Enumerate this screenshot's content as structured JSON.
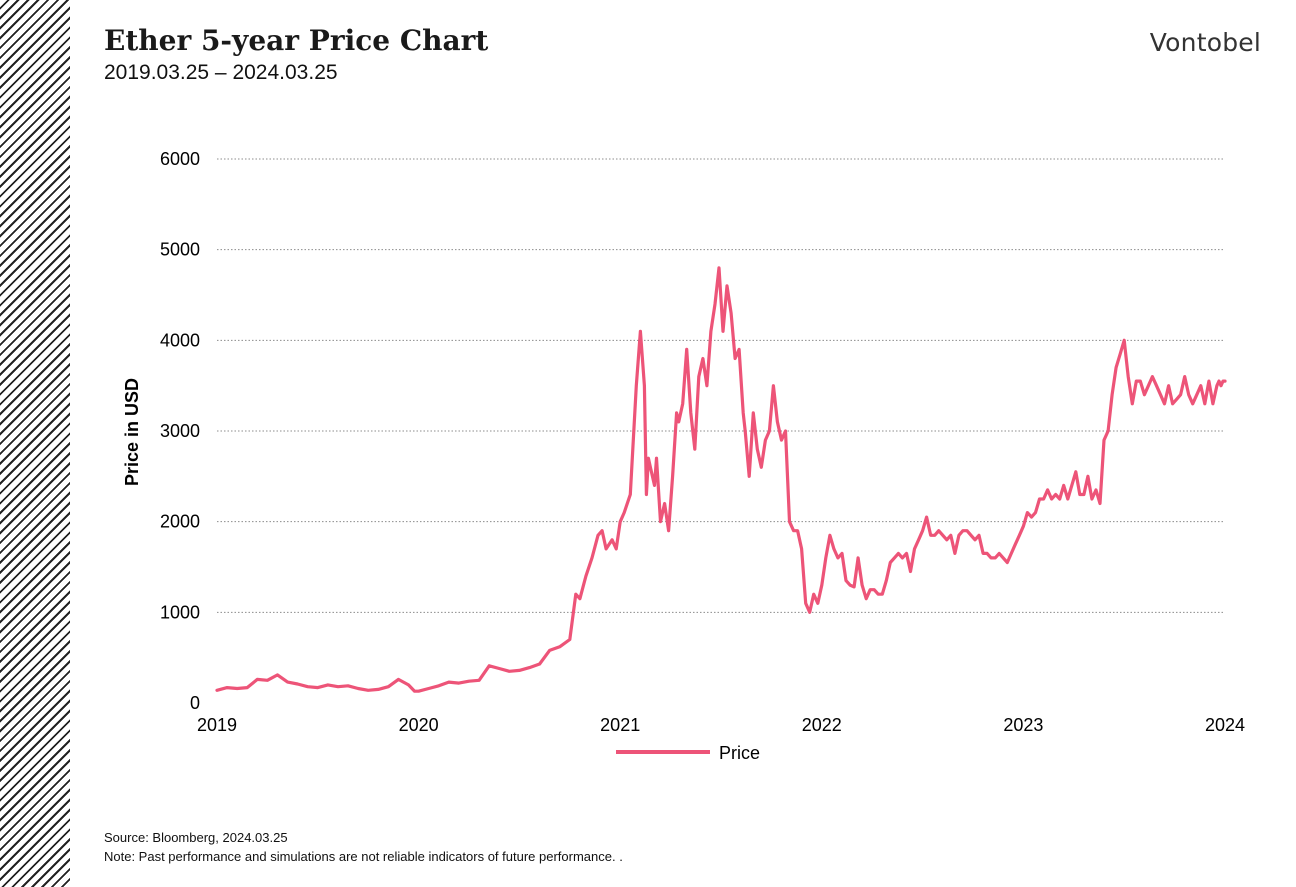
{
  "header": {
    "title": "Ether 5-year Price Chart",
    "subtitle": "2019.03.25 – 2024.03.25",
    "brand": "Vontobel"
  },
  "footer": {
    "source": "Source: Bloomberg, 2024.03.25",
    "note": "Note: Past performance and simulations are not reliable indicators of future performance. ."
  },
  "colors": {
    "line": "#ED5478",
    "grid": "#8C8C8C",
    "text": "#000000"
  },
  "chart_data": {
    "type": "line",
    "title": "Ether 5-year Price Chart",
    "xlabel": "",
    "ylabel": "Price in USD",
    "xlim": [
      2019.0,
      2024.0
    ],
    "ylim": [
      0,
      6000
    ],
    "yticks": [
      0,
      1000,
      2000,
      3000,
      4000,
      5000,
      6000
    ],
    "xticks": [
      2019,
      2020,
      2021,
      2022,
      2023,
      2024
    ],
    "legend": {
      "entries": [
        "Price"
      ],
      "position": "bottom-center"
    },
    "series": [
      {
        "name": "Price",
        "x": [
          2019.0,
          2019.05,
          2019.1,
          2019.15,
          2019.2,
          2019.25,
          2019.3,
          2019.35,
          2019.4,
          2019.45,
          2019.5,
          2019.55,
          2019.6,
          2019.65,
          2019.7,
          2019.75,
          2019.8,
          2019.85,
          2019.9,
          2019.95,
          2019.98,
          2020.0,
          2020.05,
          2020.1,
          2020.15,
          2020.2,
          2020.25,
          2020.3,
          2020.35,
          2020.4,
          2020.45,
          2020.5,
          2020.55,
          2020.6,
          2020.65,
          2020.7,
          2020.75,
          2020.78,
          2020.8,
          2020.83,
          2020.86,
          2020.89,
          2020.91,
          2020.93,
          2020.96,
          2020.98,
          2021.0,
          2021.02,
          2021.05,
          2021.08,
          2021.1,
          2021.12,
          2021.13,
          2021.14,
          2021.15,
          2021.17,
          2021.18,
          2021.2,
          2021.22,
          2021.24,
          2021.26,
          2021.28,
          2021.29,
          2021.31,
          2021.33,
          2021.35,
          2021.37,
          2021.39,
          2021.41,
          2021.43,
          2021.45,
          2021.47,
          2021.49,
          2021.51,
          2021.53,
          2021.55,
          2021.57,
          2021.59,
          2021.61,
          2021.62,
          2021.64,
          2021.66,
          2021.68,
          2021.7,
          2021.72,
          2021.74,
          2021.76,
          2021.78,
          2021.8,
          2021.82,
          2021.84,
          2021.86,
          2021.88,
          2021.9,
          2021.92,
          2021.94,
          2021.96,
          2021.98,
          2022.0,
          2022.02,
          2022.04,
          2022.06,
          2022.08,
          2022.1,
          2022.12,
          2022.14,
          2022.16,
          2022.18,
          2022.2,
          2022.22,
          2022.24,
          2022.26,
          2022.28,
          2022.3,
          2022.32,
          2022.34,
          2022.36,
          2022.38,
          2022.4,
          2022.42,
          2022.44,
          2022.46,
          2022.48,
          2022.5,
          2022.52,
          2022.54,
          2022.56,
          2022.58,
          2022.6,
          2022.62,
          2022.64,
          2022.66,
          2022.68,
          2022.7,
          2022.72,
          2022.74,
          2022.76,
          2022.78,
          2022.8,
          2022.82,
          2022.84,
          2022.86,
          2022.88,
          2022.9,
          2022.92,
          2022.94,
          2022.96,
          2022.98,
          2023.0,
          2023.02,
          2023.04,
          2023.06,
          2023.08,
          2023.1,
          2023.12,
          2023.14,
          2023.16,
          2023.18,
          2023.2,
          2023.22,
          2023.24,
          2023.26,
          2023.28,
          2023.3,
          2023.32,
          2023.34,
          2023.36,
          2023.38,
          2023.4,
          2023.42,
          2023.44,
          2023.46,
          2023.48,
          2023.5,
          2023.52,
          2023.54,
          2023.56,
          2023.58,
          2023.6,
          2023.62,
          2023.64,
          2023.66,
          2023.68,
          2023.7,
          2023.72,
          2023.74,
          2023.76,
          2023.78,
          2023.8,
          2023.82,
          2023.84,
          2023.86,
          2023.88,
          2023.9,
          2023.92,
          2023.94,
          2023.95,
          2023.96,
          2023.97,
          2023.98,
          2023.99,
          2024.0
        ],
        "values": [
          140,
          170,
          160,
          170,
          260,
          250,
          310,
          230,
          210,
          180,
          170,
          200,
          180,
          190,
          160,
          140,
          150,
          180,
          260,
          200,
          130,
          130,
          160,
          190,
          230,
          220,
          240,
          250,
          410,
          380,
          350,
          360,
          390,
          430,
          580,
          620,
          700,
          1200,
          1150,
          1400,
          1600,
          1850,
          1900,
          1700,
          1800,
          1700,
          2000,
          2100,
          2300,
          3500,
          4100,
          3500,
          2300,
          2700,
          2600,
          2400,
          2700,
          2000,
          2200,
          1900,
          2500,
          3200,
          3100,
          3300,
          3900,
          3200,
          2800,
          3600,
          3800,
          3500,
          4100,
          4400,
          4800,
          4100,
          4600,
          4300,
          3800,
          3900,
          3200,
          3000,
          2500,
          3200,
          2800,
          2600,
          2900,
          3000,
          3500,
          3100,
          2900,
          3000,
          2000,
          1900,
          1900,
          1700,
          1100,
          1000,
          1200,
          1100,
          1300,
          1600,
          1850,
          1700,
          1600,
          1650,
          1350,
          1300,
          1280,
          1600,
          1300,
          1150,
          1250,
          1250,
          1200,
          1200,
          1350,
          1550,
          1600,
          1650,
          1600,
          1650,
          1450,
          1700,
          1800,
          1900,
          2050,
          1850,
          1850,
          1900,
          1850,
          1800,
          1850,
          1650,
          1850,
          1900,
          1900,
          1850,
          1800,
          1850,
          1650,
          1650,
          1600,
          1600,
          1650,
          1600,
          1550,
          1650,
          1750,
          1850,
          1950,
          2100,
          2050,
          2100,
          2250,
          2250,
          2350,
          2250,
          2300,
          2250,
          2400,
          2250,
          2400,
          2550,
          2300,
          2300,
          2500,
          2250,
          2350,
          2200,
          2900,
          3000,
          3400,
          3700,
          3850,
          4000,
          3600,
          3300,
          3550,
          3550,
          3400,
          3500,
          3600,
          3500,
          3400,
          3300,
          3500,
          3300,
          3350,
          3400,
          3600,
          3400,
          3300,
          3400,
          3500,
          3300,
          3550,
          3300,
          3400,
          3500,
          3550,
          3500,
          3550,
          3550
        ]
      }
    ]
  }
}
